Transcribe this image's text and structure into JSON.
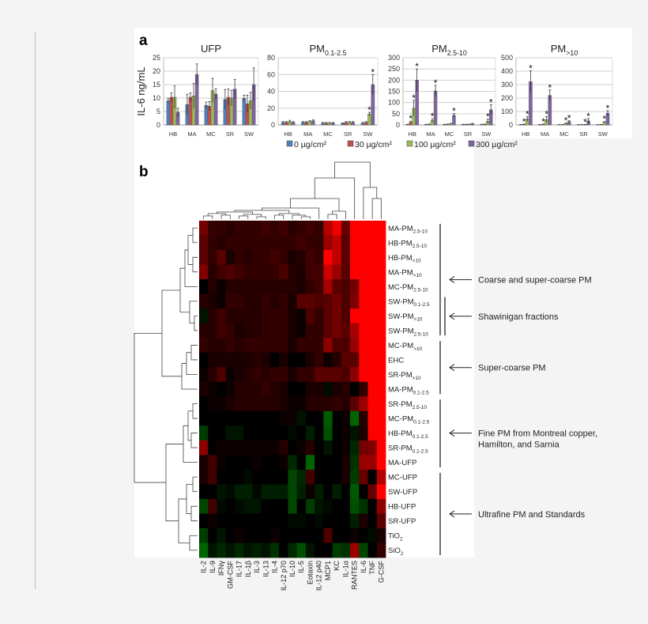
{
  "panel_a_letter": "a",
  "panel_b_letter": "b",
  "chart_data": [
    {
      "type": "bar",
      "title": "PM",
      "title_base": "UFP",
      "title_sub": "",
      "ylabel": "IL-6 ng/mL",
      "ylim": [
        0,
        25
      ],
      "yticks": [
        0,
        5,
        10,
        15,
        20,
        25
      ],
      "categories": [
        "HB",
        "MA",
        "MC",
        "SR",
        "SW"
      ],
      "series": [
        {
          "name": "0 µg/cm²",
          "values": [
            9,
            7.6,
            7.3,
            9.5,
            9.9
          ],
          "err": [
            0.8,
            3.8,
            1.2,
            3.7,
            1.2
          ]
        },
        {
          "name": "30 µg/cm²",
          "values": [
            10.3,
            10.3,
            7,
            10.3,
            7.9
          ],
          "err": [
            1.6,
            1.6,
            1.7,
            3.1,
            3.2
          ]
        },
        {
          "name": "100 µg/cm²",
          "values": [
            10.3,
            10.8,
            12.8,
            10,
            9
          ],
          "err": [
            4.2,
            4.6,
            4.5,
            2.9,
            3.1
          ]
        },
        {
          "name": "300 µg/cm²",
          "values": [
            4.7,
            18.8,
            11.5,
            13.3,
            15
          ],
          "err": [
            1.5,
            3.9,
            2,
            3.6,
            6.2
          ]
        }
      ],
      "stars": [
        [],
        [],
        [],
        [],
        []
      ],
      "grid": true
    },
    {
      "type": "bar",
      "title_base": "PM",
      "title_sub": "0.1-2.5",
      "ylim": [
        0,
        80
      ],
      "yticks": [
        0,
        20,
        40,
        60,
        80
      ],
      "categories": [
        "HB",
        "MA",
        "MC",
        "SR",
        "SW"
      ],
      "series": [
        {
          "name": "0 µg/cm²",
          "values": [
            3,
            3,
            2,
            2,
            2
          ],
          "err": [
            1,
            1,
            1,
            0.5,
            1
          ]
        },
        {
          "name": "30 µg/cm²",
          "values": [
            3,
            3,
            2,
            3,
            3
          ],
          "err": [
            1,
            1,
            1,
            1,
            1
          ]
        },
        {
          "name": "100 µg/cm²",
          "values": [
            4,
            4,
            2,
            3,
            13
          ],
          "err": [
            1.5,
            1,
            1,
            1,
            2
          ]
        },
        {
          "name": "300 µg/cm²",
          "values": [
            3,
            5,
            2,
            3,
            48
          ],
          "err": [
            1,
            1,
            1,
            1,
            12
          ]
        }
      ],
      "stars": [
        [],
        [],
        [],
        [],
        [
          2,
          3
        ]
      ],
      "grid": true
    },
    {
      "type": "bar",
      "title_base": "PM",
      "title_sub": "2.5-10",
      "ylim": [
        0,
        300
      ],
      "yticks": [
        0,
        50,
        100,
        150,
        200,
        250,
        300
      ],
      "categories": [
        "HB",
        "MA",
        "MC",
        "SR",
        "SW"
      ],
      "series": [
        {
          "name": "0 µg/cm²",
          "values": [
            2,
            2,
            2,
            2,
            2
          ],
          "err": [
            1,
            1,
            1,
            1,
            1
          ]
        },
        {
          "name": "30 µg/cm²",
          "values": [
            12,
            3,
            3,
            2,
            3
          ],
          "err": [
            5,
            1,
            1,
            1,
            1
          ]
        },
        {
          "name": "100 µg/cm²",
          "values": [
            75,
            20,
            5,
            3,
            17
          ],
          "err": [
            35,
            8,
            2,
            1,
            10
          ]
        },
        {
          "name": "300 µg/cm²",
          "values": [
            200,
            152,
            43,
            5,
            68
          ],
          "err": [
            50,
            25,
            8,
            2,
            22
          ]
        }
      ],
      "stars": [
        [
          1,
          2,
          3
        ],
        [
          2,
          3
        ],
        [
          3
        ],
        [],
        [
          2,
          3
        ]
      ],
      "grid": true
    },
    {
      "type": "bar",
      "title_base": "PM",
      "title_sub": ">10",
      "ylim": [
        0,
        500
      ],
      "yticks": [
        0,
        100,
        200,
        300,
        400,
        500
      ],
      "categories": [
        "HB",
        "MA",
        "MC",
        "SR",
        "SW"
      ],
      "series": [
        {
          "name": "0 µg/cm²",
          "values": [
            3,
            3,
            2,
            2,
            2
          ],
          "err": [
            1,
            1,
            1,
            1,
            1
          ]
        },
        {
          "name": "30 µg/cm²",
          "values": [
            5,
            5,
            2,
            2,
            3
          ],
          "err": [
            2,
            2,
            1,
            1,
            1
          ]
        },
        {
          "name": "100 µg/cm²",
          "values": [
            45,
            40,
            10,
            3,
            20
          ],
          "err": [
            18,
            22,
            4,
            1,
            6
          ]
        },
        {
          "name": "300 µg/cm²",
          "values": [
            322,
            220,
            25,
            30,
            88
          ],
          "err": [
            80,
            40,
            6,
            18,
            18
          ]
        }
      ],
      "stars": [
        [
          1,
          2,
          3
        ],
        [
          1,
          2,
          3
        ],
        [
          2,
          3
        ],
        [
          2,
          3
        ],
        [
          2,
          3
        ]
      ],
      "grid": true
    },
    {
      "type": "heatmap",
      "columns": [
        "IL-2",
        "IL-9",
        "IFNγ",
        "GM-CSF",
        "IL-17",
        "IL-1β",
        "IL-3",
        "IL-13",
        "IL-4",
        "IL-12 p70",
        "IL-10",
        "IL-5",
        "Eotaxin",
        "IL-12 p40",
        "MCP1",
        "KC",
        "IL-1α",
        "RANTES",
        "IL-6",
        "TNF",
        "G-CSF"
      ],
      "rows": [
        {
          "base": "MA-PM",
          "sub": "2.5-10"
        },
        {
          "base": "HB-PM",
          "sub": "2.5-10"
        },
        {
          "base": "HB-PM",
          "sub": ">10"
        },
        {
          "base": "MA-PM",
          "sub": ">10"
        },
        {
          "base": "MC-PM",
          "sub": "2.5-10"
        },
        {
          "base": "SW-PM",
          "sub": "0.1-2.5"
        },
        {
          "base": "SW-PM",
          "sub": ">10"
        },
        {
          "base": "SW-PM",
          "sub": "2.5-10"
        },
        {
          "base": "MC-PM",
          "sub": ">10"
        },
        {
          "base": "EHC",
          "sub": ""
        },
        {
          "base": "SR-PM",
          "sub": ">10"
        },
        {
          "base": "MA-PM",
          "sub": "0.1-2.5"
        },
        {
          "base": "SR-PM",
          "sub": "2.5-10"
        },
        {
          "base": "MC-PM",
          "sub": "0.1-2.5"
        },
        {
          "base": "HB-PM",
          "sub": "0.1-2.5"
        },
        {
          "base": "SR-PM",
          "sub": "0.1-2.5"
        },
        {
          "base": "MA-UFP",
          "sub": ""
        },
        {
          "base": "MC-UFP",
          "sub": ""
        },
        {
          "base": "SW-UFP",
          "sub": ""
        },
        {
          "base": "HB-UFP",
          "sub": ""
        },
        {
          "base": "SR-UFP",
          "sub": ""
        },
        {
          "base": "TiO",
          "sub": "2"
        },
        {
          "base": "SiO",
          "sub": "2"
        }
      ],
      "color_scale": {
        "negative": "#00c800",
        "zero": "#000000",
        "positive": "#ff0000",
        "range": [
          -1,
          1
        ]
      },
      "values": [
        [
          0.45,
          0.2,
          0.2,
          0.15,
          0.2,
          0.2,
          0.2,
          0.25,
          0.2,
          0.25,
          0.15,
          0.2,
          0.25,
          0.2,
          0.7,
          0.95,
          0.4,
          1,
          1,
          1,
          1
        ],
        [
          0.35,
          0.2,
          0.15,
          0.2,
          0.2,
          0.2,
          0.2,
          0.2,
          0.2,
          0.2,
          0.2,
          0.25,
          0.2,
          0.2,
          0.6,
          0.75,
          0.35,
          1,
          1,
          1,
          1
        ],
        [
          0.35,
          0.2,
          0.35,
          0.1,
          0.2,
          0.15,
          0.2,
          0.2,
          0.25,
          0.2,
          0.1,
          0.15,
          0.25,
          0.2,
          1,
          0.75,
          0.35,
          1,
          1,
          1,
          1
        ],
        [
          0.5,
          0.15,
          0.25,
          0.3,
          0.25,
          0.2,
          0.2,
          0.2,
          0.2,
          0.3,
          0.15,
          0.1,
          0.25,
          0.25,
          0.8,
          0.6,
          0.35,
          1,
          1,
          1,
          1
        ],
        [
          0,
          0.15,
          0.05,
          0.15,
          0.15,
          0.15,
          0.15,
          0.15,
          0.15,
          0.15,
          0.15,
          0.1,
          0.2,
          0.25,
          0.65,
          0.35,
          0.3,
          0.45,
          1,
          1,
          1
        ],
        [
          0.15,
          0.1,
          0.05,
          0.2,
          0.2,
          0.15,
          0.15,
          0.2,
          0.15,
          0.2,
          0.1,
          0.35,
          0.35,
          0.3,
          0.35,
          0.45,
          0.3,
          0.5,
          1,
          1,
          1
        ],
        [
          -0.1,
          0.15,
          0.25,
          0.15,
          0.15,
          0.15,
          0.15,
          0.2,
          0.2,
          0.2,
          0.1,
          0.05,
          0.3,
          0.2,
          0.35,
          0.45,
          0.3,
          1,
          1,
          1,
          1
        ],
        [
          0.15,
          0.15,
          0.25,
          0.2,
          0.1,
          0.15,
          0.15,
          0.2,
          0.2,
          0.2,
          0.1,
          0.05,
          0.2,
          0.2,
          0.35,
          0.45,
          0.35,
          0.65,
          1,
          1,
          1
        ],
        [
          0.2,
          0.15,
          0.15,
          0.2,
          0.15,
          0.2,
          0.2,
          0.2,
          0.2,
          0.2,
          0.1,
          0.2,
          0.2,
          0.2,
          0.55,
          0.3,
          0.3,
          0.6,
          1,
          1,
          1
        ],
        [
          0,
          0.1,
          0.1,
          0.1,
          0.1,
          0.1,
          0.15,
          0.1,
          0,
          0.1,
          0,
          0,
          0.1,
          0.2,
          0.05,
          0.15,
          0.35,
          0.35,
          1,
          1,
          1
        ],
        [
          0.05,
          0.15,
          0.3,
          0.05,
          0.1,
          0.15,
          0.2,
          0.15,
          0.2,
          0.2,
          0.1,
          0.2,
          0.2,
          0.35,
          0.35,
          0.35,
          0.3,
          0.55,
          1,
          1,
          1
        ],
        [
          0.1,
          0.05,
          0,
          0.05,
          0.15,
          0.15,
          0.15,
          0.2,
          0.15,
          0.1,
          0,
          0,
          0.1,
          0.1,
          -0.05,
          0.1,
          0.15,
          0,
          0.2,
          1,
          1
        ],
        [
          0,
          0.05,
          0.05,
          0.1,
          0.15,
          0.15,
          0.15,
          0.15,
          0.15,
          0.1,
          0.05,
          0.05,
          0.15,
          0.15,
          0.15,
          0.2,
          0.15,
          0.35,
          0.6,
          1,
          1
        ],
        [
          0,
          0,
          0,
          0,
          0,
          0,
          0,
          0,
          0,
          0.05,
          0.05,
          -0.1,
          0,
          0,
          -0.45,
          0,
          0.05,
          -0.5,
          0.15,
          1,
          1
        ],
        [
          -0.3,
          0,
          0,
          -0.1,
          -0.1,
          0,
          0,
          0,
          0,
          0,
          -0.05,
          0,
          -0.15,
          0,
          -0.4,
          0,
          0.05,
          -0.1,
          0.1,
          1,
          1
        ],
        [
          0.55,
          0,
          0.05,
          0.05,
          0.05,
          0.05,
          0.05,
          0.05,
          0.05,
          0.15,
          0,
          0.05,
          0.15,
          0,
          -0.1,
          0,
          0.05,
          -0.2,
          0.45,
          0.5,
          1
        ],
        [
          0.1,
          0.25,
          0.05,
          0,
          0,
          0,
          0.05,
          0,
          0,
          0.05,
          -0.2,
          0,
          -0.5,
          0,
          0,
          0,
          0.1,
          -0.25,
          0.6,
          0.6,
          1
        ],
        [
          0.1,
          0.25,
          0,
          0,
          0,
          -0.05,
          0,
          0,
          0,
          0,
          -0.35,
          -0.2,
          0.25,
          0,
          0,
          0,
          0.1,
          -0.3,
          0.4,
          0,
          0.7
        ],
        [
          0,
          0,
          -0.1,
          -0.05,
          -0.15,
          -0.15,
          -0.05,
          -0.15,
          -0.15,
          -0.15,
          -0.35,
          -0.15,
          0.05,
          -0.15,
          0,
          -0.15,
          0,
          -0.45,
          0,
          0.4,
          1
        ],
        [
          -0.35,
          0.25,
          -0.05,
          0,
          -0.05,
          -0.1,
          -0.1,
          0,
          0,
          0,
          -0.35,
          0,
          -0.3,
          -0.1,
          -0.05,
          0,
          0,
          -0.4,
          -0.25,
          0,
          0.55
        ],
        [
          0,
          0.05,
          0,
          0,
          0,
          0,
          0,
          0,
          0,
          0,
          -0.05,
          -0.05,
          0,
          -0.05,
          0,
          0,
          0,
          -0.15,
          0.1,
          0,
          0.35
        ],
        [
          -0.3,
          0,
          -0.1,
          0,
          0.05,
          0,
          0,
          0,
          0.05,
          0,
          0,
          0,
          0,
          0,
          0.3,
          0,
          0,
          0.05,
          0,
          -0.05,
          0.1
        ],
        [
          -0.5,
          -0.1,
          -0.2,
          -0.1,
          -0.2,
          -0.1,
          -0.15,
          -0.1,
          -0.25,
          0,
          -0.2,
          -0.4,
          -0.1,
          0,
          0,
          -0.3,
          -0.25,
          0.6,
          -0.35,
          0,
          0.2
        ]
      ],
      "annotations": [
        {
          "label": "Coarse and super-coarse PM",
          "rows": [
            0,
            7
          ]
        },
        {
          "label": "Shawinigan fractions",
          "rows": [
            5,
            7
          ]
        },
        {
          "label": "Super-coarse PM",
          "rows": [
            8,
            11
          ]
        },
        {
          "label": "Fine PM from Montreal copper,",
          "label2": "Hamilton, and Sarnia",
          "rows": [
            12,
            16
          ]
        },
        {
          "label": "Ultrafine PM and Standards",
          "rows": [
            17,
            22
          ]
        }
      ]
    }
  ],
  "colors": {
    "series": [
      "#4f81bd",
      "#c0504d",
      "#9bbb59",
      "#8064a2"
    ]
  }
}
